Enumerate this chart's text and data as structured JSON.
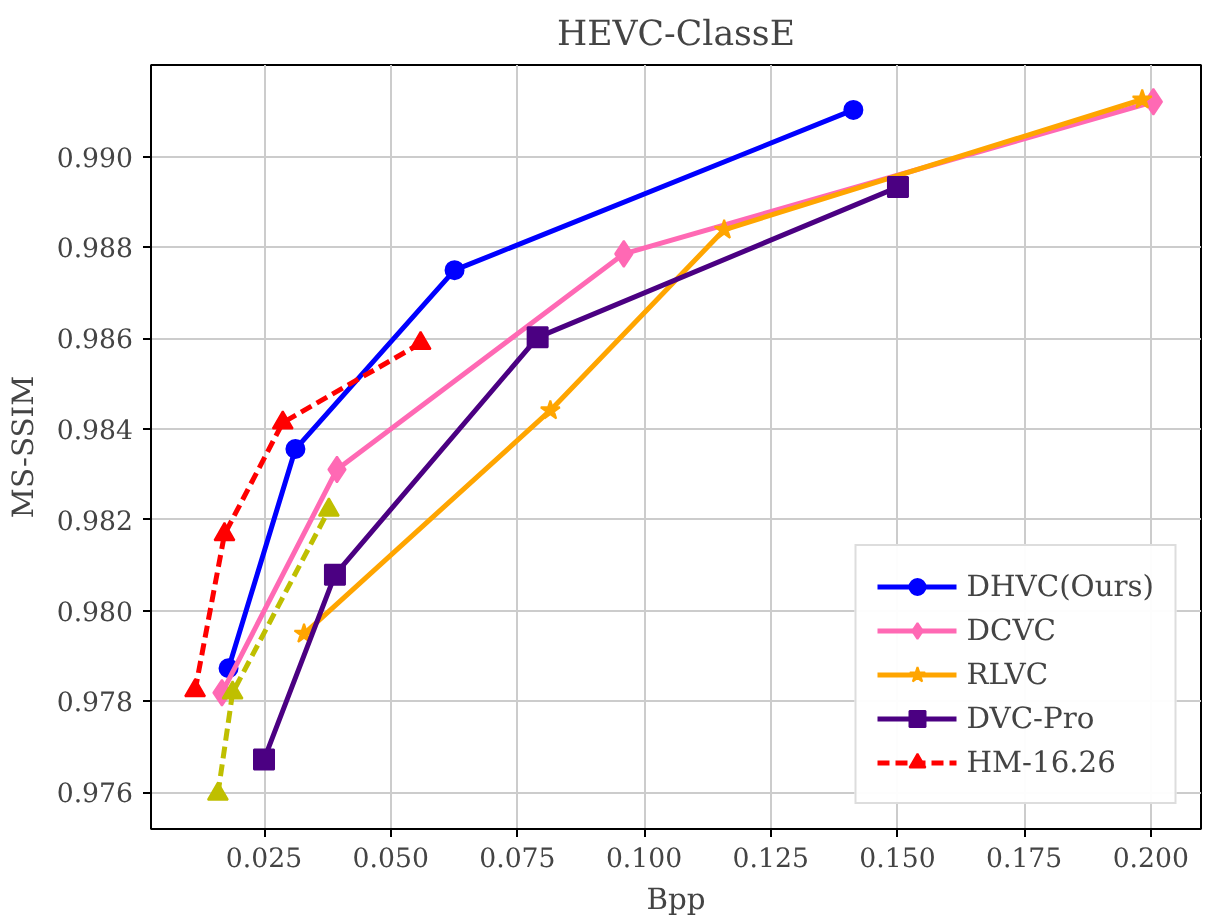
{
  "chart_data": {
    "type": "line",
    "title": "HEVC-ClassE",
    "xlabel": "Bpp",
    "ylabel": "MS-SSIM",
    "xlim": [
      0.0027,
      0.2099
    ],
    "ylim": [
      0.97519,
      0.99202
    ],
    "xticks": [
      0.025,
      {
        "value": 0.05,
        "label": "0.050"
      },
      0.075,
      {
        "value": 0.1,
        "label": "0.100"
      },
      0.125,
      {
        "value": 0.15,
        "label": "0.150"
      },
      0.175,
      {
        "value": 0.2,
        "label": "0.200"
      }
    ],
    "yticks": [
      0.976,
      0.978,
      {
        "value": 0.98,
        "label": "0.980"
      },
      0.982,
      0.984,
      0.986,
      0.988,
      {
        "value": 0.99,
        "label": "0.990"
      }
    ],
    "grid": true,
    "legend": "bottom right",
    "series": [
      {
        "name": "DHVC(Ours)",
        "color": "#0000ff",
        "marker": "circle",
        "line_style": "solid",
        "x": [
          0.018,
          0.0312,
          0.0626,
          0.1413
        ],
        "values": [
          0.97873,
          0.98356,
          0.9875,
          0.99103
        ]
      },
      {
        "name": "DCVC",
        "color": "#ff69b4",
        "marker": "diamond",
        "line_style": "solid",
        "x": [
          0.0167,
          0.0394,
          0.096,
          0.2005
        ],
        "values": [
          0.97819,
          0.98311,
          0.98786,
          0.99121
        ]
      },
      {
        "name": "RLVC",
        "color": "#ffa500",
        "marker": "star",
        "line_style": "solid",
        "x": [
          0.0329,
          0.0815,
          0.1158,
          0.1983
        ],
        "values": [
          0.97949,
          0.98441,
          0.98839,
          0.99126
        ]
      },
      {
        "name": "DVC-Pro",
        "color": "#4b0082",
        "marker": "square",
        "line_style": "solid",
        "x": [
          0.025,
          0.039,
          0.079,
          0.1501
        ],
        "values": [
          0.97672,
          0.98079,
          0.98602,
          0.98933
        ]
      },
      {
        "color": "#bfbf00",
        "marker": "triangle",
        "line_style": "dashed",
        "x": [
          0.0159,
          0.0188,
          0.0378
        ],
        "values": [
          0.97596,
          0.97819,
          0.98222
        ]
      },
      {
        "name": "HM-16.26",
        "color": "#ff0000",
        "marker": "triangle",
        "line_style": "dashed",
        "x": [
          0.0114,
          0.0172,
          0.0287,
          0.0559
        ],
        "values": [
          0.97824,
          0.98168,
          0.98414,
          0.98589
        ]
      }
    ]
  }
}
